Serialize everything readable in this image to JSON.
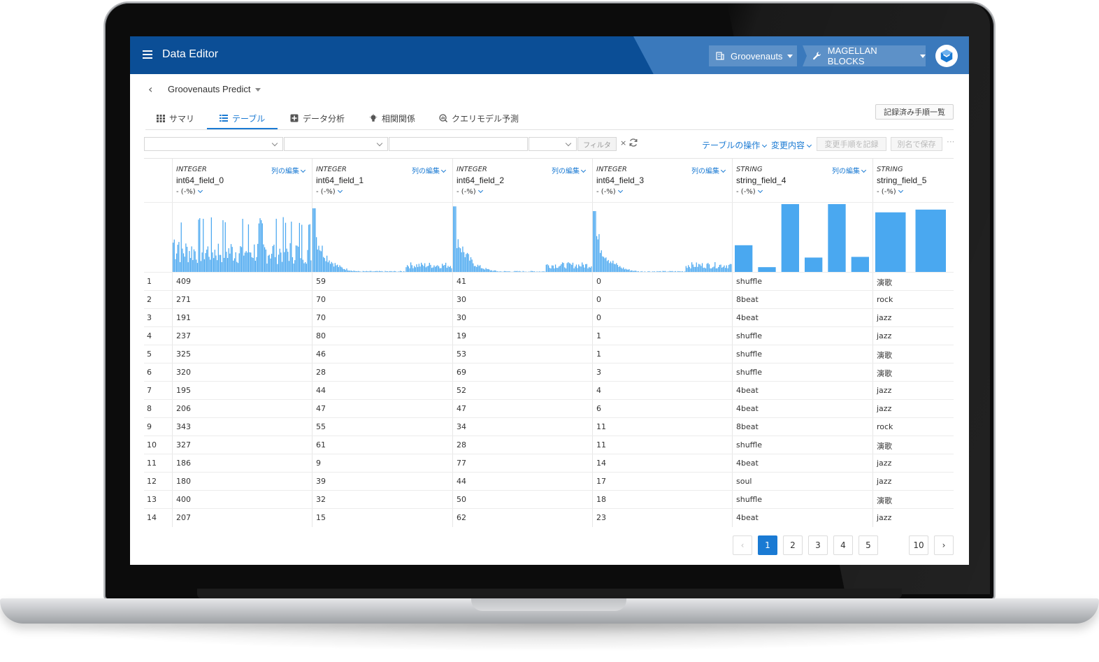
{
  "header": {
    "app_title": "Data Editor",
    "org_label": "Groovenauts",
    "project_label": "MAGELLAN BLOCKS",
    "colors": {
      "bar": "#0b4e96",
      "panel": "#3a79bc",
      "accent": "#1a7ad3"
    }
  },
  "breadcrumb": {
    "title": "Groovenauts Predict"
  },
  "tabs": [
    {
      "label": "サマリ",
      "icon": "grid-icon"
    },
    {
      "label": "テーブル",
      "icon": "list-icon",
      "active": true
    },
    {
      "label": "データ分析",
      "icon": "analysis-icon"
    },
    {
      "label": "相関関係",
      "icon": "bulb-icon"
    },
    {
      "label": "クエリモデル予測",
      "icon": "query-icon"
    }
  ],
  "log_button": "記録済み手順一覧",
  "toolbar": {
    "filter": "フィルタ",
    "clear": "×",
    "table_ops": "テーブルの操作",
    "changes": "変更内容",
    "record_steps": "変更手順を記録",
    "save_as": "別名で保存",
    "more": "···"
  },
  "columns": [
    {
      "type": "INTEGER",
      "name": "int64_field_0",
      "stat": "- (-%)",
      "edit": "列の編集"
    },
    {
      "type": "INTEGER",
      "name": "int64_field_1",
      "stat": "- (-%)",
      "edit": "列の編集"
    },
    {
      "type": "INTEGER",
      "name": "int64_field_2",
      "stat": "- (-%)",
      "edit": "列の編集"
    },
    {
      "type": "INTEGER",
      "name": "int64_field_3",
      "stat": "- (-%)",
      "edit": "列の編集"
    },
    {
      "type": "STRING",
      "name": "string_field_4",
      "stat": "- (-%)",
      "edit": "列の編集"
    },
    {
      "type": "STRING",
      "name": "string_field_5",
      "stat": "- (-%)",
      "edit": ""
    }
  ],
  "histograms": {
    "string_field_4": [
      40,
      8,
      100,
      22,
      100,
      23
    ],
    "string_field_5": [
      88,
      92
    ]
  },
  "rows": [
    [
      "1",
      "409",
      "59",
      "41",
      "0",
      "shuffle",
      "演歌"
    ],
    [
      "2",
      "271",
      "70",
      "30",
      "0",
      "8beat",
      "rock"
    ],
    [
      "3",
      "191",
      "70",
      "30",
      "0",
      "4beat",
      "jazz"
    ],
    [
      "4",
      "237",
      "80",
      "19",
      "1",
      "shuffle",
      "jazz"
    ],
    [
      "5",
      "325",
      "46",
      "53",
      "1",
      "shuffle",
      "演歌"
    ],
    [
      "6",
      "320",
      "28",
      "69",
      "3",
      "shuffle",
      "演歌"
    ],
    [
      "7",
      "195",
      "44",
      "52",
      "4",
      "4beat",
      "jazz"
    ],
    [
      "8",
      "206",
      "47",
      "47",
      "6",
      "4beat",
      "jazz"
    ],
    [
      "9",
      "343",
      "55",
      "34",
      "11",
      "8beat",
      "rock"
    ],
    [
      "10",
      "327",
      "61",
      "28",
      "11",
      "shuffle",
      "演歌"
    ],
    [
      "11",
      "186",
      "9",
      "77",
      "14",
      "4beat",
      "jazz"
    ],
    [
      "12",
      "180",
      "39",
      "44",
      "17",
      "soul",
      "jazz"
    ],
    [
      "13",
      "400",
      "32",
      "50",
      "18",
      "shuffle",
      "演歌"
    ],
    [
      "14",
      "207",
      "15",
      "62",
      "23",
      "4beat",
      "jazz"
    ]
  ],
  "pagination": {
    "prev": "‹",
    "pages": [
      "1",
      "2",
      "3",
      "4",
      "5"
    ],
    "last": "10",
    "next": "›",
    "current": "1"
  }
}
